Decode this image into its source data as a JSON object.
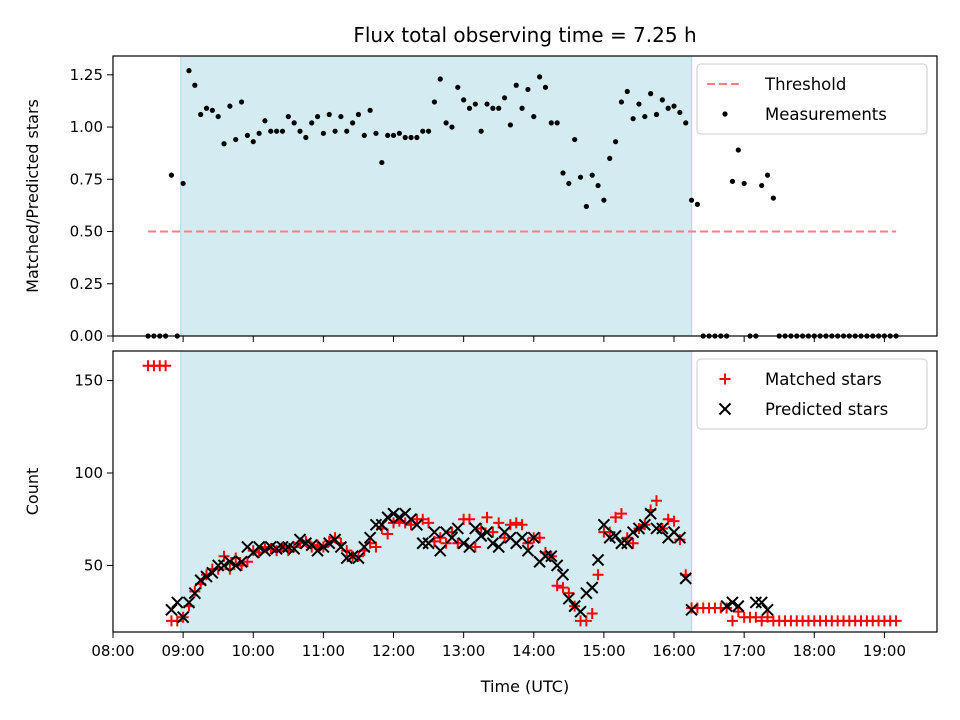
{
  "chart_data": [
    {
      "type": "scatter",
      "title": "Flux total observing time = 7.25 h",
      "xlabel": "",
      "ylabel": "Matched/Predicted stars",
      "xlim": [
        "08:00",
        "19:45"
      ],
      "ylim": [
        0,
        1.34
      ],
      "yticks": [
        "0.00",
        "0.25",
        "0.50",
        "0.75",
        "1.00",
        "1.25"
      ],
      "shaded_interval": [
        "08:58",
        "16:15"
      ],
      "legend": {
        "placement": "top-right",
        "entries": [
          "Threshold",
          "Measurements"
        ]
      },
      "series": [
        {
          "name": "Threshold",
          "kind": "dashed-line",
          "color": "#ff7f7f",
          "x": [
            "08:30",
            "19:10"
          ],
          "values": [
            0.5,
            0.5
          ]
        },
        {
          "name": "Measurements",
          "kind": "points",
          "color": "#000000",
          "x": [
            "08:30",
            "08:35",
            "08:40",
            "08:45",
            "08:50",
            "08:55",
            "09:00",
            "09:05",
            "09:10",
            "09:15",
            "09:20",
            "09:25",
            "09:30",
            "09:35",
            "09:40",
            "09:45",
            "09:50",
            "09:55",
            "10:00",
            "10:05",
            "10:10",
            "10:15",
            "10:20",
            "10:25",
            "10:30",
            "10:35",
            "10:40",
            "10:45",
            "10:50",
            "10:55",
            "11:00",
            "11:05",
            "11:10",
            "11:15",
            "11:20",
            "11:25",
            "11:30",
            "11:35",
            "11:40",
            "11:45",
            "11:50",
            "11:55",
            "12:00",
            "12:05",
            "12:10",
            "12:15",
            "12:20",
            "12:25",
            "12:30",
            "12:35",
            "12:40",
            "12:45",
            "12:50",
            "12:55",
            "13:00",
            "13:05",
            "13:10",
            "13:15",
            "13:20",
            "13:25",
            "13:30",
            "13:35",
            "13:40",
            "13:45",
            "13:50",
            "13:55",
            "14:00",
            "14:05",
            "14:10",
            "14:15",
            "14:20",
            "14:25",
            "14:30",
            "14:35",
            "14:40",
            "14:45",
            "14:50",
            "14:55",
            "15:00",
            "15:05",
            "15:10",
            "15:15",
            "15:20",
            "15:25",
            "15:30",
            "15:35",
            "15:40",
            "15:45",
            "15:50",
            "15:55",
            "16:00",
            "16:05",
            "16:10",
            "16:15",
            "16:20",
            "16:25",
            "16:30",
            "16:35",
            "16:40",
            "16:45",
            "16:50",
            "16:55",
            "17:00",
            "17:05",
            "17:10",
            "17:15",
            "17:20",
            "17:25",
            "17:30",
            "17:35",
            "17:40",
            "17:45",
            "17:50",
            "17:55",
            "18:00",
            "18:05",
            "18:10",
            "18:15",
            "18:20",
            "18:25",
            "18:30",
            "18:35",
            "18:40",
            "18:45",
            "18:50",
            "18:55",
            "19:00",
            "19:05",
            "19:10"
          ],
          "values": [
            0,
            0,
            0,
            0,
            0.77,
            0,
            0.73,
            1.27,
            1.2,
            1.06,
            1.09,
            1.08,
            1.05,
            0.92,
            1.1,
            0.94,
            1.12,
            0.96,
            0.93,
            0.97,
            1.03,
            0.98,
            0.98,
            0.98,
            1.05,
            1.02,
            0.98,
            0.95,
            1.02,
            1.05,
            0.97,
            1.06,
            0.98,
            1.05,
            0.98,
            1.02,
            1.06,
            0.96,
            1.08,
            0.97,
            0.83,
            0.96,
            0.96,
            0.97,
            0.95,
            0.95,
            0.95,
            0.98,
            0.98,
            1.12,
            1.23,
            1.02,
            1.0,
            1.19,
            1.13,
            1.09,
            1.11,
            0.98,
            1.11,
            1.09,
            1.09,
            1.14,
            1.01,
            1.2,
            1.09,
            1.18,
            1.05,
            1.24,
            1.19,
            1.02,
            1.02,
            0.78,
            0.73,
            0.94,
            0.76,
            0.62,
            0.77,
            0.72,
            0.65,
            0.85,
            0.93,
            1.12,
            1.17,
            1.04,
            1.11,
            1.05,
            1.16,
            1.06,
            1.13,
            1.09,
            1.1,
            1.07,
            1.02,
            0.65,
            0.63,
            0,
            0,
            0,
            0,
            0,
            0.74,
            0.89,
            0.73,
            0,
            0,
            0.72,
            0.77,
            0.66,
            0,
            0,
            0,
            0,
            0,
            0,
            0,
            0,
            0,
            0,
            0,
            0,
            0,
            0,
            0,
            0,
            0,
            0,
            0,
            0,
            0
          ]
        }
      ]
    },
    {
      "type": "scatter",
      "title": "",
      "xlabel": "Time (UTC)",
      "ylabel": "Count",
      "xlim": [
        "08:00",
        "19:45"
      ],
      "ylim": [
        14,
        166
      ],
      "yticks": [
        "50",
        "100",
        "150"
      ],
      "xticks": [
        "08:00",
        "09:00",
        "10:00",
        "11:00",
        "12:00",
        "13:00",
        "14:00",
        "15:00",
        "16:00",
        "17:00",
        "18:00",
        "19:00"
      ],
      "shaded_interval": [
        "08:58",
        "16:15"
      ],
      "legend": {
        "placement": "top-right",
        "entries": [
          "Matched stars",
          "Predicted stars"
        ]
      },
      "series": [
        {
          "name": "Matched stars",
          "marker": "plus",
          "color": "#ff0000",
          "x": [
            "08:30",
            "08:35",
            "08:40",
            "08:45",
            "08:50",
            "08:55",
            "09:00",
            "09:05",
            "09:10",
            "09:15",
            "09:20",
            "09:25",
            "09:30",
            "09:35",
            "09:40",
            "09:45",
            "09:50",
            "09:55",
            "10:00",
            "10:05",
            "10:10",
            "10:15",
            "10:20",
            "10:25",
            "10:30",
            "10:35",
            "10:40",
            "10:45",
            "10:50",
            "10:55",
            "11:00",
            "11:05",
            "11:10",
            "11:15",
            "11:20",
            "11:25",
            "11:30",
            "11:35",
            "11:40",
            "11:45",
            "11:50",
            "11:55",
            "12:00",
            "12:05",
            "12:10",
            "12:15",
            "12:20",
            "12:25",
            "12:30",
            "12:35",
            "12:40",
            "12:45",
            "12:50",
            "12:55",
            "13:00",
            "13:05",
            "13:10",
            "13:15",
            "13:20",
            "13:25",
            "13:30",
            "13:35",
            "13:40",
            "13:45",
            "13:50",
            "13:55",
            "14:00",
            "14:05",
            "14:10",
            "14:15",
            "14:20",
            "14:25",
            "14:30",
            "14:35",
            "14:40",
            "14:45",
            "14:50",
            "14:55",
            "15:00",
            "15:05",
            "15:10",
            "15:15",
            "15:20",
            "15:25",
            "15:30",
            "15:35",
            "15:40",
            "15:45",
            "15:50",
            "15:55",
            "16:00",
            "16:05",
            "16:10",
            "16:15",
            "16:20",
            "16:25",
            "16:30",
            "16:35",
            "16:40",
            "16:45",
            "16:50",
            "16:55",
            "17:00",
            "17:05",
            "17:10",
            "17:15",
            "17:20",
            "17:25",
            "17:30",
            "17:35",
            "17:40",
            "17:45",
            "17:50",
            "17:55",
            "18:00",
            "18:05",
            "18:10",
            "18:15",
            "18:20",
            "18:25",
            "18:30",
            "18:35",
            "18:40",
            "18:45",
            "18:50",
            "18:55",
            "19:00",
            "19:05",
            "19:10"
          ],
          "values": [
            158,
            158,
            158,
            158,
            20,
            20,
            22,
            28,
            36,
            40,
            45,
            48,
            48,
            55,
            48,
            54,
            50,
            52,
            58,
            57,
            60,
            59,
            58,
            60,
            58,
            60,
            62,
            63,
            60,
            61,
            60,
            63,
            65,
            62,
            58,
            55,
            55,
            58,
            62,
            60,
            70,
            67,
            73,
            74,
            73,
            72,
            75,
            75,
            73,
            63,
            65,
            62,
            68,
            62,
            75,
            75,
            60,
            70,
            76,
            68,
            73,
            65,
            72,
            73,
            72,
            62,
            65,
            65,
            57,
            55,
            39,
            38,
            35,
            28,
            20,
            20,
            24,
            45,
            68,
            68,
            76,
            78,
            65,
            62,
            70,
            72,
            80,
            85,
            70,
            75,
            74,
            64,
            45,
            27,
            27,
            27,
            27,
            27,
            27,
            27,
            20,
            25,
            22,
            22,
            22,
            20,
            22,
            20,
            20,
            20,
            20,
            20,
            20,
            20,
            20,
            20,
            20,
            20,
            20,
            20,
            20,
            20,
            20,
            20,
            20,
            20,
            20,
            20,
            20
          ]
        },
        {
          "name": "Predicted stars",
          "marker": "cross",
          "color": "#000000",
          "x": [
            "08:50",
            "08:55",
            "09:00",
            "09:05",
            "09:10",
            "09:15",
            "09:20",
            "09:25",
            "09:30",
            "09:35",
            "09:40",
            "09:45",
            "09:50",
            "09:55",
            "10:00",
            "10:05",
            "10:10",
            "10:15",
            "10:20",
            "10:25",
            "10:30",
            "10:35",
            "10:40",
            "10:45",
            "10:50",
            "10:55",
            "11:00",
            "11:05",
            "11:10",
            "11:15",
            "11:20",
            "11:25",
            "11:30",
            "11:35",
            "11:40",
            "11:45",
            "11:50",
            "11:55",
            "12:00",
            "12:05",
            "12:10",
            "12:15",
            "12:20",
            "12:25",
            "12:30",
            "12:35",
            "12:40",
            "12:45",
            "12:50",
            "12:55",
            "13:00",
            "13:05",
            "13:10",
            "13:15",
            "13:20",
            "13:25",
            "13:30",
            "13:35",
            "13:40",
            "13:45",
            "13:50",
            "13:55",
            "14:00",
            "14:05",
            "14:10",
            "14:15",
            "14:20",
            "14:25",
            "14:30",
            "14:35",
            "14:40",
            "14:45",
            "14:50",
            "14:55",
            "15:00",
            "15:05",
            "15:10",
            "15:15",
            "15:20",
            "15:25",
            "15:30",
            "15:35",
            "15:40",
            "15:45",
            "15:50",
            "15:55",
            "16:00",
            "16:05",
            "16:10",
            "16:15",
            "16:45",
            "16:50",
            "16:55",
            "17:10",
            "17:15",
            "17:20"
          ],
          "values": [
            26,
            30,
            22,
            30,
            35,
            42,
            44,
            46,
            50,
            50,
            52,
            50,
            52,
            60,
            57,
            60,
            58,
            60,
            59,
            60,
            60,
            59,
            64,
            62,
            61,
            58,
            60,
            62,
            64,
            60,
            54,
            55,
            54,
            60,
            65,
            72,
            72,
            76,
            78,
            76,
            78,
            75,
            72,
            62,
            62,
            68,
            58,
            68,
            65,
            70,
            62,
            60,
            70,
            66,
            68,
            62,
            60,
            68,
            65,
            62,
            65,
            58,
            65,
            52,
            55,
            55,
            50,
            45,
            32,
            28,
            25,
            35,
            38,
            53,
            72,
            65,
            66,
            62,
            62,
            68,
            70,
            72,
            78,
            70,
            70,
            65,
            68,
            65,
            43,
            26,
            28,
            30,
            28,
            30,
            30,
            26
          ]
        }
      ]
    }
  ]
}
